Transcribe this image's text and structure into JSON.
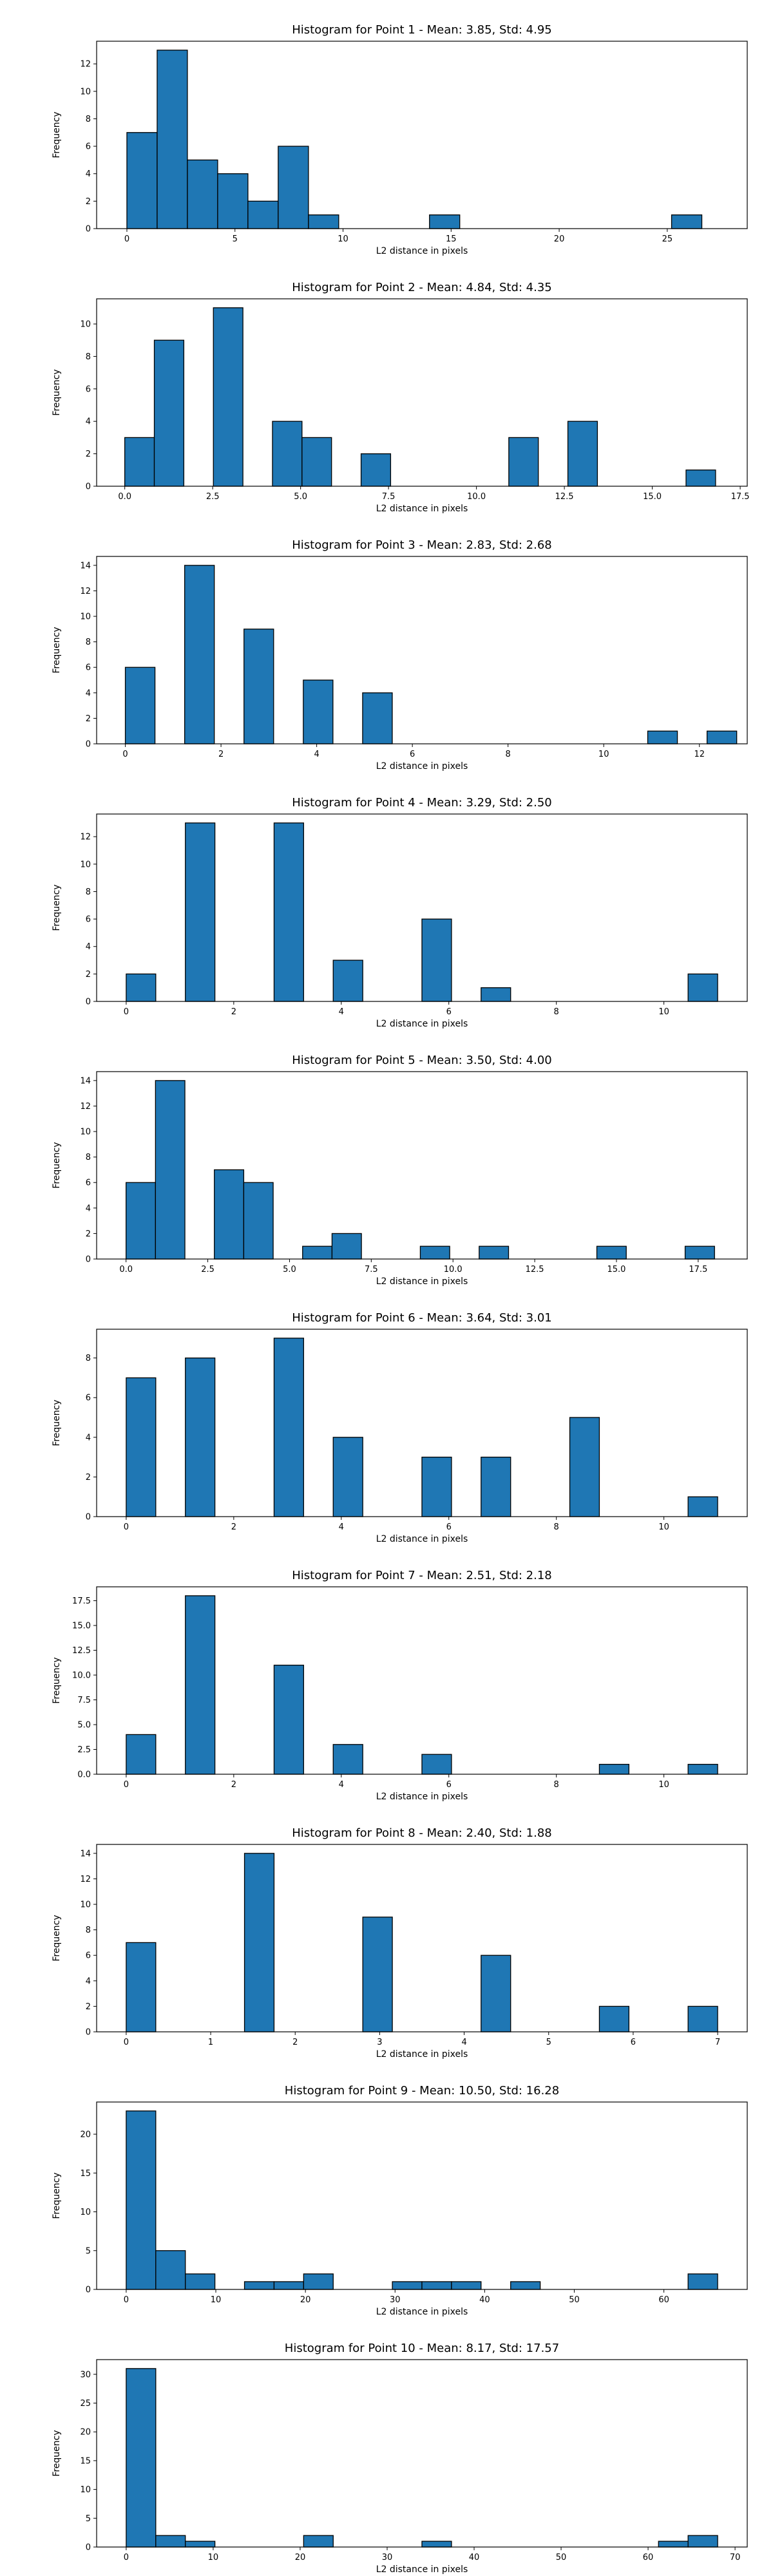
{
  "chart_data": [
    {
      "type": "bar",
      "title": "Histogram for Point 1 - Mean: 3.85, Std: 4.95",
      "xlabel": "L2 distance in pixels",
      "ylabel": "Frequency",
      "xlim": [
        -1.4,
        28.7
      ],
      "ylim": [
        0,
        13.65
      ],
      "xticks": [
        0,
        5,
        10,
        15,
        20,
        25
      ],
      "yticks": [
        0,
        2,
        4,
        6,
        8,
        10,
        12
      ],
      "bins": [
        {
          "x0": 0.0,
          "x1": 1.4,
          "count": 7
        },
        {
          "x0": 1.4,
          "x1": 2.8,
          "count": 13
        },
        {
          "x0": 2.8,
          "x1": 4.2,
          "count": 5
        },
        {
          "x0": 4.2,
          "x1": 5.6,
          "count": 4
        },
        {
          "x0": 5.6,
          "x1": 7.0,
          "count": 2
        },
        {
          "x0": 7.0,
          "x1": 8.4,
          "count": 6
        },
        {
          "x0": 8.4,
          "x1": 9.8,
          "count": 1
        },
        {
          "x0": 14.0,
          "x1": 15.4,
          "count": 1
        },
        {
          "x0": 25.2,
          "x1": 26.6,
          "count": 1
        }
      ],
      "grid": false
    },
    {
      "type": "bar",
      "title": "Histogram for Point 2 - Mean: 4.84, Std: 4.35",
      "xlabel": "L2 distance in pixels",
      "ylabel": "Frequency",
      "xlim": [
        -0.8,
        17.7
      ],
      "ylim": [
        0,
        11.55
      ],
      "xticks": [
        0.0,
        2.5,
        5.0,
        7.5,
        10.0,
        12.5,
        15.0,
        17.5
      ],
      "yticks": [
        0,
        2,
        4,
        6,
        8,
        10
      ],
      "bins": [
        {
          "x0": 0.0,
          "x1": 0.84,
          "count": 3
        },
        {
          "x0": 0.84,
          "x1": 1.68,
          "count": 9
        },
        {
          "x0": 2.52,
          "x1": 3.36,
          "count": 11
        },
        {
          "x0": 4.2,
          "x1": 5.04,
          "count": 4
        },
        {
          "x0": 5.04,
          "x1": 5.88,
          "count": 3
        },
        {
          "x0": 6.72,
          "x1": 7.56,
          "count": 2
        },
        {
          "x0": 10.92,
          "x1": 11.76,
          "count": 3
        },
        {
          "x0": 12.6,
          "x1": 13.44,
          "count": 4
        },
        {
          "x0": 15.96,
          "x1": 16.8,
          "count": 1
        }
      ],
      "grid": false
    },
    {
      "type": "bar",
      "title": "Histogram for Point 3 - Mean: 2.83, Std: 2.68",
      "xlabel": "L2 distance in pixels",
      "ylabel": "Frequency",
      "xlim": [
        -0.6,
        13.0
      ],
      "ylim": [
        0,
        14.7
      ],
      "xticks": [
        0,
        2,
        4,
        6,
        8,
        10,
        12
      ],
      "yticks": [
        0,
        2,
        4,
        6,
        8,
        10,
        12,
        14
      ],
      "bins": [
        {
          "x0": 0.0,
          "x1": 0.62,
          "count": 6
        },
        {
          "x0": 1.24,
          "x1": 1.86,
          "count": 14
        },
        {
          "x0": 2.48,
          "x1": 3.1,
          "count": 9
        },
        {
          "x0": 3.72,
          "x1": 4.34,
          "count": 5
        },
        {
          "x0": 4.96,
          "x1": 5.58,
          "count": 4
        },
        {
          "x0": 10.92,
          "x1": 11.54,
          "count": 1
        },
        {
          "x0": 12.16,
          "x1": 12.78,
          "count": 1
        }
      ],
      "grid": false
    },
    {
      "type": "bar",
      "title": "Histogram for Point 4 - Mean: 3.29, Std: 2.50",
      "xlabel": "L2 distance in pixels",
      "ylabel": "Frequency",
      "xlim": [
        -0.55,
        11.55
      ],
      "ylim": [
        0,
        13.65
      ],
      "xticks": [
        0,
        2,
        4,
        6,
        8,
        10
      ],
      "yticks": [
        0,
        2,
        4,
        6,
        8,
        10,
        12
      ],
      "bins": [
        {
          "x0": 0.0,
          "x1": 0.55,
          "count": 2
        },
        {
          "x0": 1.1,
          "x1": 1.65,
          "count": 13
        },
        {
          "x0": 2.75,
          "x1": 3.3,
          "count": 13
        },
        {
          "x0": 3.85,
          "x1": 4.4,
          "count": 3
        },
        {
          "x0": 5.5,
          "x1": 6.05,
          "count": 6
        },
        {
          "x0": 6.6,
          "x1": 7.15,
          "count": 1
        },
        {
          "x0": 10.45,
          "x1": 11.0,
          "count": 2
        }
      ],
      "grid": false
    },
    {
      "type": "bar",
      "title": "Histogram for Point 5 - Mean: 3.50, Std: 4.00",
      "xlabel": "L2 distance in pixels",
      "ylabel": "Frequency",
      "xlim": [
        -0.9,
        19.0
      ],
      "ylim": [
        0,
        14.7
      ],
      "xticks": [
        0.0,
        2.5,
        5.0,
        7.5,
        10.0,
        12.5,
        15.0,
        17.5
      ],
      "yticks": [
        0,
        2,
        4,
        6,
        8,
        10,
        12,
        14
      ],
      "bins": [
        {
          "x0": 0.0,
          "x1": 0.9,
          "count": 6
        },
        {
          "x0": 0.9,
          "x1": 1.8,
          "count": 14
        },
        {
          "x0": 2.7,
          "x1": 3.6,
          "count": 7
        },
        {
          "x0": 3.6,
          "x1": 4.5,
          "count": 6
        },
        {
          "x0": 5.4,
          "x1": 6.3,
          "count": 1
        },
        {
          "x0": 6.3,
          "x1": 7.2,
          "count": 2
        },
        {
          "x0": 9.0,
          "x1": 9.9,
          "count": 1
        },
        {
          "x0": 10.8,
          "x1": 11.7,
          "count": 1
        },
        {
          "x0": 14.4,
          "x1": 15.3,
          "count": 1
        },
        {
          "x0": 17.1,
          "x1": 18.0,
          "count": 1
        }
      ],
      "grid": false
    },
    {
      "type": "bar",
      "title": "Histogram for Point 6 - Mean: 3.64, Std: 3.01",
      "xlabel": "L2 distance in pixels",
      "ylabel": "Frequency",
      "xlim": [
        -0.55,
        11.55
      ],
      "ylim": [
        0,
        9.45
      ],
      "xticks": [
        0,
        2,
        4,
        6,
        8,
        10
      ],
      "yticks": [
        0,
        2,
        4,
        6,
        8
      ],
      "bins": [
        {
          "x0": 0.0,
          "x1": 0.55,
          "count": 7
        },
        {
          "x0": 1.1,
          "x1": 1.65,
          "count": 8
        },
        {
          "x0": 2.75,
          "x1": 3.3,
          "count": 9
        },
        {
          "x0": 3.85,
          "x1": 4.4,
          "count": 4
        },
        {
          "x0": 5.5,
          "x1": 6.05,
          "count": 3
        },
        {
          "x0": 6.6,
          "x1": 7.15,
          "count": 3
        },
        {
          "x0": 8.25,
          "x1": 8.8,
          "count": 5
        },
        {
          "x0": 10.45,
          "x1": 11.0,
          "count": 1
        }
      ],
      "grid": false
    },
    {
      "type": "bar",
      "title": "Histogram for Point 7 - Mean: 2.51, Std: 2.18",
      "xlabel": "L2 distance in pixels",
      "ylabel": "Frequency",
      "xlim": [
        -0.55,
        11.55
      ],
      "ylim": [
        0,
        18.9
      ],
      "xticks": [
        0,
        2,
        4,
        6,
        8,
        10
      ],
      "yticks": [
        0.0,
        2.5,
        5.0,
        7.5,
        10.0,
        12.5,
        15.0,
        17.5
      ],
      "bins": [
        {
          "x0": 0.0,
          "x1": 0.55,
          "count": 4
        },
        {
          "x0": 1.1,
          "x1": 1.65,
          "count": 18
        },
        {
          "x0": 2.75,
          "x1": 3.3,
          "count": 11
        },
        {
          "x0": 3.85,
          "x1": 4.4,
          "count": 3
        },
        {
          "x0": 5.5,
          "x1": 6.05,
          "count": 2
        },
        {
          "x0": 8.8,
          "x1": 9.35,
          "count": 1
        },
        {
          "x0": 10.45,
          "x1": 11.0,
          "count": 1
        }
      ],
      "grid": false
    },
    {
      "type": "bar",
      "title": "Histogram for Point 8 - Mean: 2.40, Std: 1.88",
      "xlabel": "L2 distance in pixels",
      "ylabel": "Frequency",
      "xlim": [
        -0.35,
        7.35
      ],
      "ylim": [
        0,
        14.7
      ],
      "xticks": [
        0,
        1,
        2,
        3,
        4,
        5,
        6,
        7
      ],
      "yticks": [
        0,
        2,
        4,
        6,
        8,
        10,
        12,
        14
      ],
      "bins": [
        {
          "x0": 0.0,
          "x1": 0.35,
          "count": 7
        },
        {
          "x0": 1.4,
          "x1": 1.75,
          "count": 14
        },
        {
          "x0": 2.8,
          "x1": 3.15,
          "count": 9
        },
        {
          "x0": 4.2,
          "x1": 4.55,
          "count": 6
        },
        {
          "x0": 5.6,
          "x1": 5.95,
          "count": 2
        },
        {
          "x0": 6.65,
          "x1": 7.0,
          "count": 2
        }
      ],
      "grid": false
    },
    {
      "type": "bar",
      "title": "Histogram for Point 9 - Mean: 10.50, Std: 16.28",
      "xlabel": "L2 distance in pixels",
      "ylabel": "Frequency",
      "xlim": [
        -3.3,
        69.3
      ],
      "ylim": [
        0,
        24.15
      ],
      "xticks": [
        0,
        10,
        20,
        30,
        40,
        50,
        60
      ],
      "yticks": [
        0,
        5,
        10,
        15,
        20
      ],
      "bins": [
        {
          "x0": 0.0,
          "x1": 3.3,
          "count": 23
        },
        {
          "x0": 3.3,
          "x1": 6.6,
          "count": 5
        },
        {
          "x0": 6.6,
          "x1": 9.9,
          "count": 2
        },
        {
          "x0": 13.2,
          "x1": 16.5,
          "count": 1
        },
        {
          "x0": 16.5,
          "x1": 19.8,
          "count": 1
        },
        {
          "x0": 19.8,
          "x1": 23.1,
          "count": 2
        },
        {
          "x0": 29.7,
          "x1": 33.0,
          "count": 1
        },
        {
          "x0": 33.0,
          "x1": 36.3,
          "count": 1
        },
        {
          "x0": 36.3,
          "x1": 39.6,
          "count": 1
        },
        {
          "x0": 42.9,
          "x1": 46.2,
          "count": 1
        },
        {
          "x0": 62.7,
          "x1": 66.0,
          "count": 2
        }
      ],
      "grid": false
    },
    {
      "type": "bar",
      "title": "Histogram for Point 10 - Mean: 8.17, Std: 17.57",
      "xlabel": "L2 distance in pixels",
      "ylabel": "Frequency",
      "xlim": [
        -3.4,
        71.4
      ],
      "ylim": [
        0,
        32.55
      ],
      "xticks": [
        0,
        10,
        20,
        30,
        40,
        50,
        60,
        70
      ],
      "yticks": [
        0,
        5,
        10,
        15,
        20,
        25,
        30
      ],
      "bins": [
        {
          "x0": 0.0,
          "x1": 3.4,
          "count": 31
        },
        {
          "x0": 3.4,
          "x1": 6.8,
          "count": 2
        },
        {
          "x0": 6.8,
          "x1": 10.2,
          "count": 1
        },
        {
          "x0": 20.4,
          "x1": 23.8,
          "count": 2
        },
        {
          "x0": 34.0,
          "x1": 37.4,
          "count": 1
        },
        {
          "x0": 61.2,
          "x1": 64.6,
          "count": 1
        },
        {
          "x0": 64.6,
          "x1": 68.0,
          "count": 2
        }
      ],
      "grid": false
    }
  ],
  "colors": {
    "bar_fill": "#1f77b4",
    "bar_edge": "#000000",
    "axis": "#000000"
  }
}
